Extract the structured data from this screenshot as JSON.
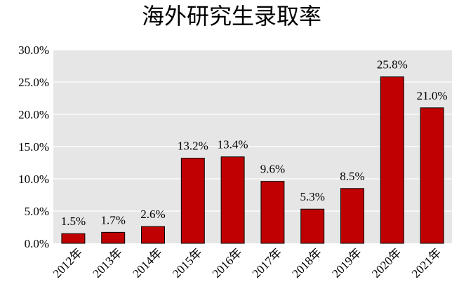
{
  "chart_data": {
    "type": "bar",
    "title": "海外研究生录取率",
    "xlabel": "",
    "ylabel": "",
    "categories": [
      "2012年",
      "2013年",
      "2014年",
      "2015年",
      "2016年",
      "2017年",
      "2018年",
      "2019年",
      "2020年",
      "2021年"
    ],
    "values": [
      1.5,
      1.7,
      2.6,
      13.2,
      13.4,
      9.6,
      5.3,
      8.5,
      25.8,
      21.0
    ],
    "data_labels": [
      "1.5%",
      "1.7%",
      "2.6%",
      "13.2%",
      "13.4%",
      "9.6%",
      "5.3%",
      "8.5%",
      "25.8%",
      "21.0%"
    ],
    "ylim": [
      0,
      30
    ],
    "yticks": [
      0,
      5,
      10,
      15,
      20,
      25,
      30
    ],
    "ytick_labels": [
      "0.0%",
      "5.0%",
      "10.0%",
      "15.0%",
      "20.0%",
      "25.0%",
      "30.0%"
    ],
    "grid": true,
    "legend": "none",
    "colors": {
      "bar": "#c00000",
      "bar_edge": "#000000",
      "plot_background": "#e6e6e6",
      "gridline": "#ffffff"
    }
  }
}
